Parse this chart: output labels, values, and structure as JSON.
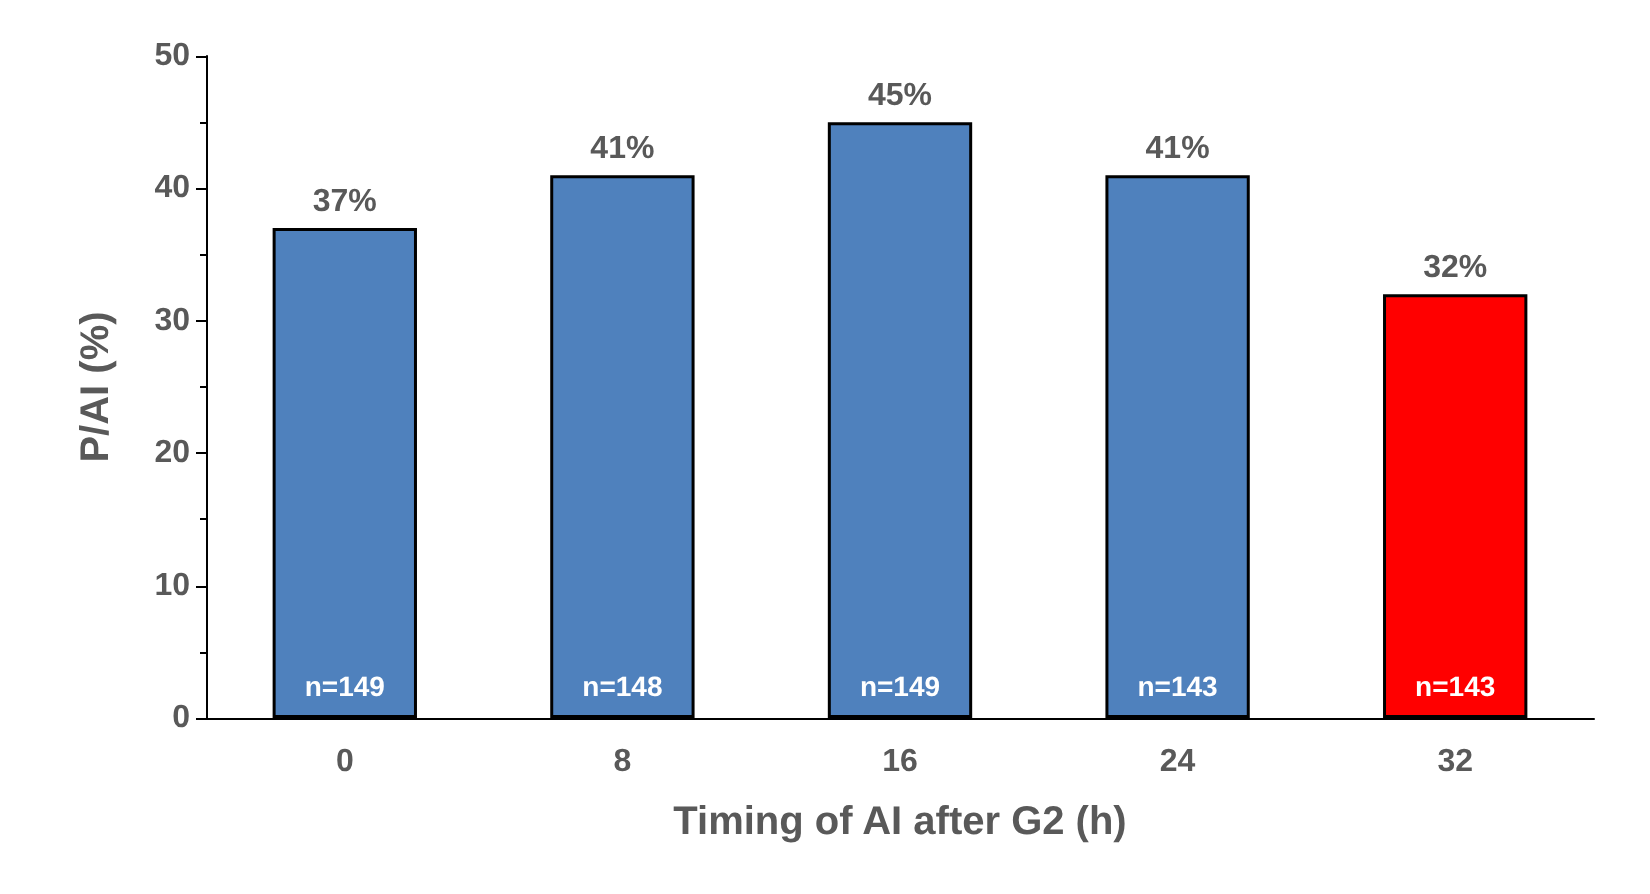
{
  "chart_data": {
    "type": "bar",
    "xlabel": "Timing of AI after G2 (h)",
    "ylabel": "P/AI (%)",
    "categories": [
      "0",
      "8",
      "16",
      "24",
      "32"
    ],
    "values": [
      37,
      41,
      45,
      41,
      32
    ],
    "colors": [
      "#4f81bd",
      "#4f81bd",
      "#4f81bd",
      "#4f81bd",
      "#ff0000"
    ],
    "value_labels": [
      "37%",
      "41%",
      "45%",
      "41%",
      "32%"
    ],
    "ylim": [
      0,
      50
    ],
    "yticks": [
      0,
      10,
      20,
      30,
      40,
      50
    ],
    "grid": false,
    "annotations": [
      "n=149",
      "n=148",
      "n=149",
      "n=143",
      "n=143"
    ]
  }
}
